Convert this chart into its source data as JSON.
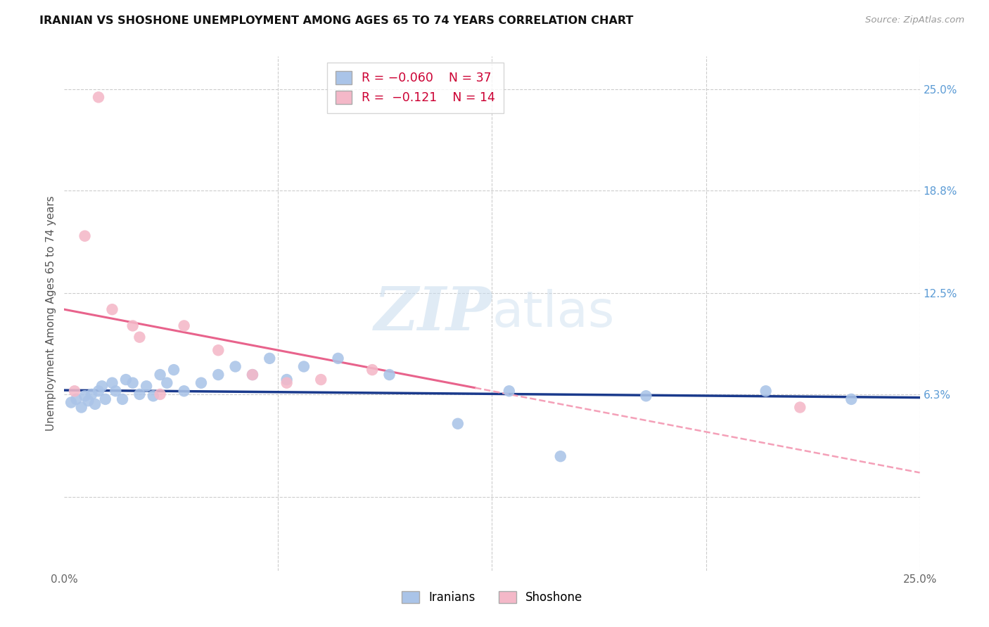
{
  "title": "IRANIAN VS SHOSHONE UNEMPLOYMENT AMONG AGES 65 TO 74 YEARS CORRELATION CHART",
  "source": "Source: ZipAtlas.com",
  "ylabel": "Unemployment Among Ages 65 to 74 years",
  "xlim": [
    0,
    25.0
  ],
  "ylim": [
    -4.5,
    27.0
  ],
  "x_ticks": [
    0.0,
    6.25,
    12.5,
    18.75,
    25.0
  ],
  "x_tick_labels": [
    "0.0%",
    "",
    "",
    "",
    "25.0%"
  ],
  "y_tick_labels_right": [
    "6.3%",
    "12.5%",
    "18.8%",
    "25.0%"
  ],
  "y_tick_vals_right": [
    6.3,
    12.5,
    18.8,
    25.0
  ],
  "grid_color": "#cccccc",
  "background_color": "#ffffff",
  "iranians_color": "#aac4e8",
  "shoshone_color": "#f4b8c8",
  "iranians_line_color": "#1a3a8c",
  "shoshone_line_color_solid": "#e8638c",
  "shoshone_line_color_dash": "#f4a0b8",
  "R_iranians": -0.06,
  "N_iranians": 37,
  "R_shoshone": -0.121,
  "N_shoshone": 14,
  "legend_label_iranians": "Iranians",
  "legend_label_shoshone": "Shoshone",
  "watermark_zip": "ZIP",
  "watermark_atlas": "atlas",
  "iranians_x": [
    0.2,
    0.35,
    0.5,
    0.6,
    0.7,
    0.8,
    0.9,
    1.0,
    1.1,
    1.2,
    1.4,
    1.5,
    1.7,
    1.8,
    2.0,
    2.2,
    2.4,
    2.6,
    2.8,
    3.0,
    3.2,
    3.5,
    4.0,
    4.5,
    5.0,
    5.5,
    6.0,
    6.5,
    7.0,
    8.0,
    9.5,
    11.5,
    13.0,
    14.5,
    17.0,
    20.5,
    23.0
  ],
  "iranians_y": [
    5.8,
    6.0,
    5.5,
    6.2,
    5.9,
    6.3,
    5.7,
    6.5,
    6.8,
    6.0,
    7.0,
    6.5,
    6.0,
    7.2,
    7.0,
    6.3,
    6.8,
    6.2,
    7.5,
    7.0,
    7.8,
    6.5,
    7.0,
    7.5,
    8.0,
    7.5,
    8.5,
    7.2,
    8.0,
    8.5,
    7.5,
    4.5,
    6.5,
    2.5,
    6.2,
    6.5,
    6.0
  ],
  "shoshone_x": [
    0.3,
    0.6,
    1.0,
    1.4,
    2.0,
    2.2,
    2.8,
    3.5,
    4.5,
    5.5,
    6.5,
    7.5,
    9.0,
    21.5
  ],
  "shoshone_y": [
    6.5,
    16.0,
    24.5,
    11.5,
    10.5,
    9.8,
    6.3,
    10.5,
    9.0,
    7.5,
    7.0,
    7.2,
    7.8,
    5.5
  ],
  "shoshone_line_x0": 0.0,
  "shoshone_line_y0": 11.5,
  "shoshone_line_x1": 25.0,
  "shoshone_line_y1": 1.5,
  "shoshone_solid_end_x": 12.0,
  "iranians_line_x0": 0.0,
  "iranians_line_y0": 6.55,
  "iranians_line_x1": 25.0,
  "iranians_line_y1": 6.1
}
